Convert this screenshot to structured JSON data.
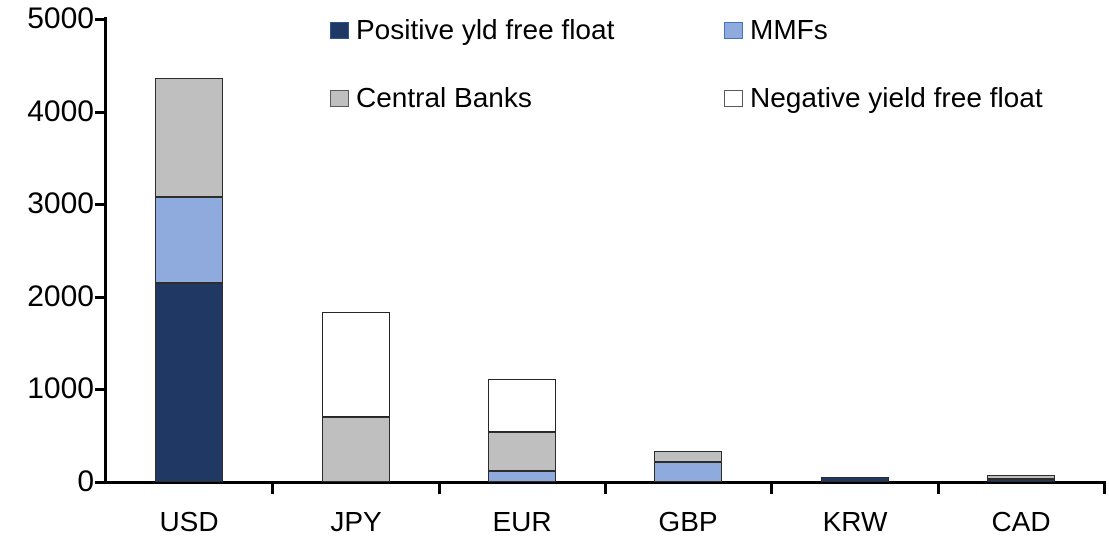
{
  "chart_data": {
    "type": "bar",
    "subtype": "stacked",
    "title": "",
    "xlabel": "",
    "ylabel": "",
    "categories": [
      "USD",
      "JPY",
      "EUR",
      "GBP",
      "KRW",
      "CAD"
    ],
    "series": [
      {
        "name": "Positive yld free float",
        "color": "#1f3864",
        "segment_border": "#2d2d2d",
        "swatch_border": "#2f5496",
        "values": [
          2150,
          0,
          0,
          0,
          50,
          30
        ]
      },
      {
        "name": "MMFs",
        "color": "#8faadc",
        "segment_border": "#2d2d2d",
        "swatch_border": "#4472c4",
        "values": [
          925,
          0,
          120,
          215,
          0,
          0
        ]
      },
      {
        "name": "Central Banks",
        "color": "#bfbfbf",
        "segment_border": "#2d2d2d",
        "swatch_border": "#595959",
        "values": [
          1290,
          700,
          420,
          115,
          0,
          50
        ]
      },
      {
        "name": "Negative yield free float",
        "color": "#ffffff",
        "segment_border": "#262626",
        "swatch_border": "#595959",
        "values": [
          0,
          1140,
          570,
          0,
          0,
          0
        ]
      }
    ],
    "totals": [
      4365,
      1840,
      1110,
      330,
      50,
      80
    ],
    "ylim": [
      0,
      5000
    ],
    "yticks": [
      0,
      1000,
      2000,
      3000,
      4000,
      5000
    ],
    "grid": false,
    "legend_position": "top",
    "legend_rows": [
      [
        "Positive yld free float",
        "MMFs"
      ],
      [
        "Central Banks",
        "Negative yield free float"
      ]
    ],
    "axis_color": "#000000"
  }
}
